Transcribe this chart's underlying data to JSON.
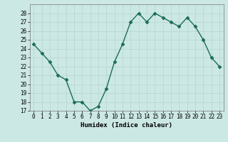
{
  "x": [
    0,
    1,
    2,
    3,
    4,
    5,
    6,
    7,
    8,
    9,
    10,
    11,
    12,
    13,
    14,
    15,
    16,
    17,
    18,
    19,
    20,
    21,
    22,
    23
  ],
  "y": [
    24.5,
    23.5,
    22.5,
    21.0,
    20.5,
    18.0,
    18.0,
    17.0,
    17.5,
    19.5,
    22.5,
    24.5,
    27.0,
    28.0,
    27.0,
    28.0,
    27.5,
    27.0,
    26.5,
    27.5,
    26.5,
    25.0,
    23.0,
    22.0
  ],
  "xlabel": "Humidex (Indice chaleur)",
  "ylim": [
    17,
    29
  ],
  "xlim": [
    -0.5,
    23.5
  ],
  "yticks": [
    17,
    18,
    19,
    20,
    21,
    22,
    23,
    24,
    25,
    26,
    27,
    28
  ],
  "xticks": [
    0,
    1,
    2,
    3,
    4,
    5,
    6,
    7,
    8,
    9,
    10,
    11,
    12,
    13,
    14,
    15,
    16,
    17,
    18,
    19,
    20,
    21,
    22,
    23
  ],
  "xtick_labels": [
    "0",
    "1",
    "2",
    "3",
    "4",
    "5",
    "6",
    "7",
    "8",
    "9",
    "10",
    "11",
    "12",
    "13",
    "14",
    "15",
    "16",
    "17",
    "18",
    "19",
    "20",
    "21",
    "22",
    "23"
  ],
  "line_color": "#1a6b5a",
  "marker_color": "#1a6b5a",
  "bg_color": "#cce8e4",
  "grid_color": "#b8d8d4",
  "xlabel_fontsize": 6.5,
  "tick_fontsize": 5.5
}
